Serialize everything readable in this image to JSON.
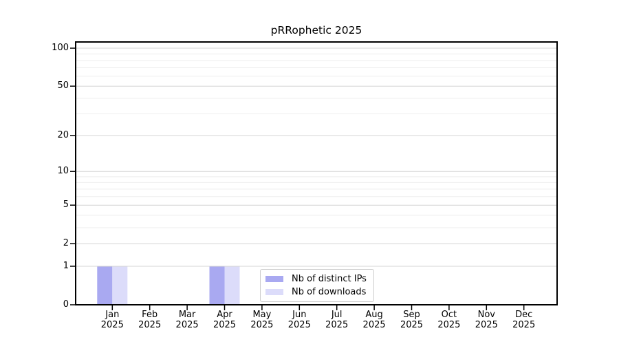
{
  "chart_data": {
    "type": "bar",
    "title": "pRRophetic 2025",
    "categories": [
      "Jan 2025",
      "Feb 2025",
      "Mar 2025",
      "Apr 2025",
      "May 2025",
      "Jun 2025",
      "Jul 2025",
      "Aug 2025",
      "Sep 2025",
      "Oct 2025",
      "Nov 2025",
      "Dec 2025"
    ],
    "series": [
      {
        "name": "Nb of distinct IPs",
        "color": "#a9a9f1",
        "values": [
          1,
          0,
          0,
          1,
          0,
          0,
          0,
          0,
          0,
          0,
          0,
          0
        ]
      },
      {
        "name": "Nb of downloads",
        "color": "#dcdcfa",
        "values": [
          1,
          0,
          0,
          1,
          0,
          0,
          0,
          0,
          0,
          0,
          0,
          0
        ]
      }
    ],
    "yscale": "log1p",
    "ylim": [
      0,
      100
    ],
    "yticks": [
      0,
      1,
      2,
      5,
      10,
      20,
      50,
      100
    ],
    "minor_gridlines": [
      3,
      4,
      6,
      7,
      8,
      9,
      30,
      40,
      60,
      70,
      80,
      90
    ],
    "grid": true,
    "legend_position": "lower center inside",
    "colors": {
      "axis": "#000000",
      "major_grid": "#d4d4d4",
      "minor_grid": "#ededed",
      "legend_border": "#cccccc",
      "background": "#ffffff"
    }
  }
}
